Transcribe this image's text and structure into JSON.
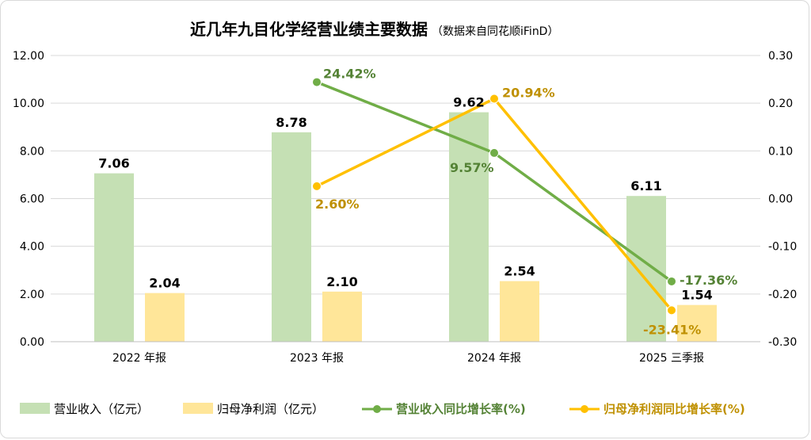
{
  "chart_data": {
    "type": "bar",
    "title": "近几年九目化学经营业绩主要数据",
    "subtitle": "（数据来自同花顺iFinD）",
    "categories": [
      "2022 年报",
      "2023 年报",
      "2024 年报",
      "2025 三季报"
    ],
    "ylim": [
      0,
      12
    ],
    "y_ticks": [
      "0.00",
      "2.00",
      "4.00",
      "6.00",
      "8.00",
      "10.00",
      "12.00"
    ],
    "y2lim": [
      -0.3,
      0.3
    ],
    "y2_ticks": [
      "-0.30",
      "-0.20",
      "-0.10",
      "0.00",
      "0.10",
      "0.20",
      "0.30"
    ],
    "grid": true,
    "legend_position": "bottom",
    "bar_series": [
      {
        "name": "营业收入（亿元）",
        "color": "#c5e0b4",
        "values": [
          7.06,
          8.78,
          9.62,
          6.11
        ],
        "labels": [
          "7.06",
          "8.78",
          "9.62",
          "6.11"
        ]
      },
      {
        "name": "归母净利润（亿元）",
        "color": "#ffe699",
        "values": [
          2.04,
          2.1,
          2.54,
          1.54
        ],
        "labels": [
          "2.04",
          "2.10",
          "2.54",
          "1.54"
        ]
      }
    ],
    "line_series": [
      {
        "name": "营业收入同比增长率(%)",
        "color": "#70ad47",
        "label_color": "#548235",
        "values": [
          null,
          0.2442,
          0.0957,
          -0.1736
        ],
        "labels": [
          "",
          "24.42%",
          "9.57%",
          "-17.36%"
        ]
      },
      {
        "name": "归母净利润同比增长率(%)",
        "color": "#ffc000",
        "label_color": "#bf9000",
        "values": [
          null,
          0.026,
          0.2094,
          -0.2341
        ],
        "labels": [
          "",
          "2.60%",
          "20.94%",
          "-23.41%"
        ]
      }
    ]
  }
}
